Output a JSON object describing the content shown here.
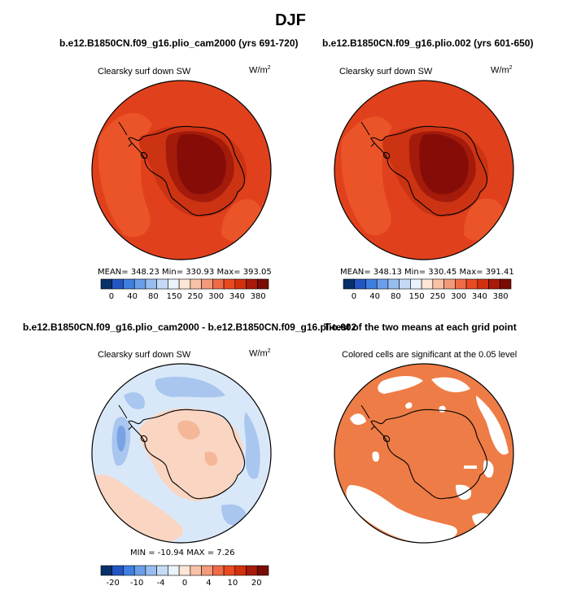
{
  "title": "DJF",
  "panels": [
    {
      "id": "case1",
      "heading": "b.e12.B1850CN.f09_g16.plio_cam2000 (yrs 691-720)",
      "variable": "Clearsky surf down SW",
      "units_base": "W/m",
      "units_sup": "2",
      "stats": "MEAN= 348.23   Min= 330.93   Max= 393.05"
    },
    {
      "id": "case2",
      "heading": "b.e12.B1850CN.f09_g16.plio.002 (yrs 601-650)",
      "variable": "Clearsky surf down SW",
      "units_base": "W/m",
      "units_sup": "2",
      "stats": "MEAN= 348.13   Min= 330.45   Max= 391.41"
    },
    {
      "id": "diff",
      "heading": "b.e12.B1850CN.f09_g16.plio_cam2000 - b.e12.B1850CN.f09_g16.plio.002",
      "variable": "Clearsky surf down SW",
      "units_base": "W/m",
      "units_sup": "2",
      "stats": "MIN = -10.94  MAX =    7.26"
    },
    {
      "id": "ttest",
      "heading": "T-test of the two means at each grid point",
      "variable": "Colored cells are significant at the 0.05 level"
    }
  ],
  "colorbars": {
    "mean": {
      "colors": [
        "#08306b",
        "#2356c4",
        "#3f7fe0",
        "#6a9ee8",
        "#97bdf0",
        "#c4daf6",
        "#eaf3fc",
        "#fde6d6",
        "#f9c2a7",
        "#f39a7a",
        "#ef6b46",
        "#e94a20",
        "#d3300f",
        "#a81a0a",
        "#7a0c05"
      ],
      "ticks": [
        "0",
        "40",
        "80",
        "150",
        "250",
        "300",
        "340",
        "380"
      ]
    },
    "diff": {
      "colors": [
        "#08306b",
        "#2356c4",
        "#3f7fe0",
        "#6a9ee8",
        "#97bdf0",
        "#c4daf6",
        "#eaf3fc",
        "#fde6d6",
        "#f9c2a7",
        "#f39a7a",
        "#ef6b46",
        "#e94a20",
        "#d3300f",
        "#a81a0a",
        "#7a0c05"
      ],
      "ticks": [
        "-20",
        "-10",
        "-4",
        "0",
        "4",
        "10",
        "20"
      ]
    }
  },
  "field_colors": {
    "mean_ocean": "#e0411c",
    "mean_band": "#ea5428",
    "mean_coast": "#cc3313",
    "mean_interior": "#a41b0b",
    "mean_plateau": "#860d07",
    "diff_background": "#d9e8f8",
    "diff_blue": "#a9c6ef",
    "diff_blue_dark": "#7aa3e3",
    "diff_pos": "#fad5c1",
    "diff_pos_strong": "#f4b797",
    "ttest_sig": "#ee7c46",
    "ttest_nonsig": "#ffffff"
  }
}
